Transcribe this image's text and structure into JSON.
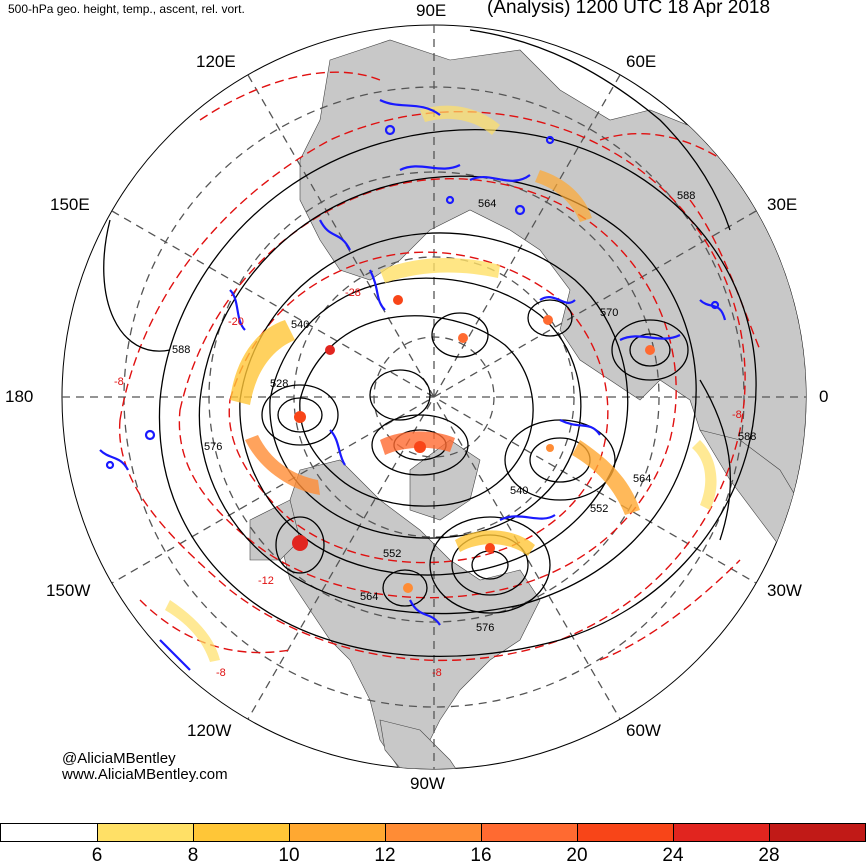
{
  "header": {
    "left_title": "500-hPa geo. height, temp., ascent, rel. vort.",
    "right_title": "(Analysis) 1200 UTC 18 Apr 2018"
  },
  "longitude_labels": {
    "n90e": "90E",
    "n60e": "60E",
    "n120e": "120E",
    "n30e": "30E",
    "n150e": "150E",
    "n0": "0",
    "n180": "180",
    "n150w": "150W",
    "n30w": "30W",
    "n120w": "120W",
    "n60w": "60W",
    "n90w": "90W"
  },
  "contour_labels": {
    "c588a": "588",
    "c588b": "588",
    "c588c": "588",
    "c540a": "540",
    "c540b": "540",
    "c528": "528",
    "c576a": "576",
    "c576b": "576",
    "c564a": "564",
    "c564b": "564",
    "c564c": "564",
    "c552a": "552",
    "c552b": "552",
    "c570": "570",
    "t8a": "-8",
    "t8b": "-8",
    "t8c": "-8",
    "t8d": "-8",
    "t28": "-28",
    "t20": "-20",
    "t12": "-12"
  },
  "credits": {
    "line1": "@AliciaMBentley",
    "line2": "www.AliciaMBentley.com"
  },
  "colorbar": {
    "ticks": [
      "6",
      "8",
      "10",
      "12",
      "16",
      "20",
      "24",
      "28"
    ],
    "colors": [
      "#ffffff",
      "#ffe066",
      "#ffc637",
      "#ffa831",
      "#ff8c35",
      "#ff6a31",
      "#f84518",
      "#e1251f",
      "#c11a17"
    ]
  },
  "colors": {
    "height_contour": "#000000",
    "temperature_contour": "#e01010",
    "vorticity": "#1a1aff",
    "land": "#c8c8c8",
    "grid": "#555555"
  }
}
